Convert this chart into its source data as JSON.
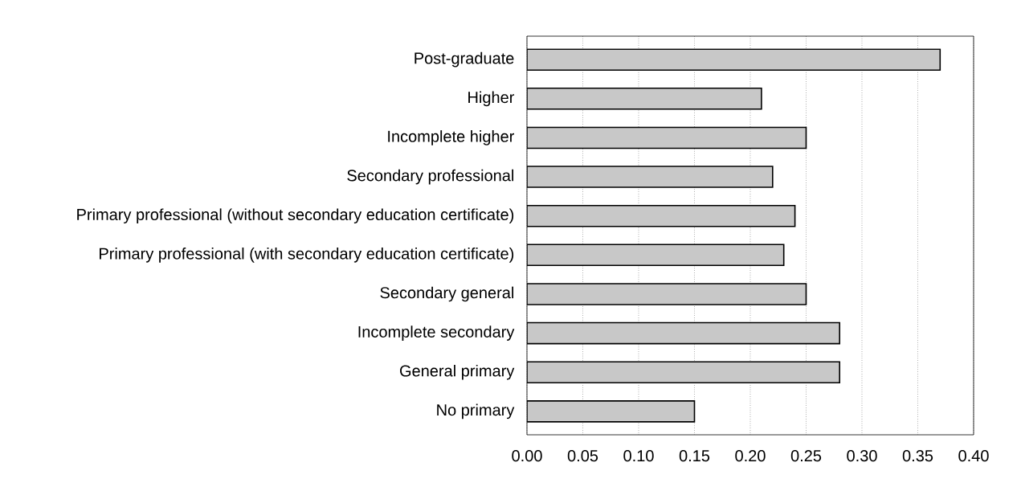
{
  "chart_data": {
    "type": "bar",
    "orientation": "horizontal",
    "categories": [
      "Post-graduate",
      "Higher",
      "Incomplete higher",
      "Secondary professional",
      "Primary professional (without secondary education certificate)",
      "Primary professional (with secondary education certificate)",
      "Secondary general",
      "Incomplete secondary",
      "General primary",
      "No primary"
    ],
    "values": [
      0.37,
      0.21,
      0.25,
      0.22,
      0.24,
      0.23,
      0.25,
      0.28,
      0.28,
      0.15
    ],
    "color": "#c8c8c8",
    "xlim": [
      0,
      0.4
    ],
    "xticks": [
      {
        "value": 0,
        "label": "0.00"
      },
      {
        "value": 0.05,
        "label": "0.05"
      },
      {
        "value": 0.1,
        "label": "0.10"
      },
      {
        "value": 0.15,
        "label": "0.15"
      },
      {
        "value": 0.2,
        "label": "0.20"
      },
      {
        "value": 0.25,
        "label": "0.25"
      },
      {
        "value": 0.3,
        "label": "0.30"
      },
      {
        "value": 0.35,
        "label": "0.35"
      },
      {
        "value": 0.4,
        "label": "0.40"
      }
    ],
    "grid": "x"
  }
}
